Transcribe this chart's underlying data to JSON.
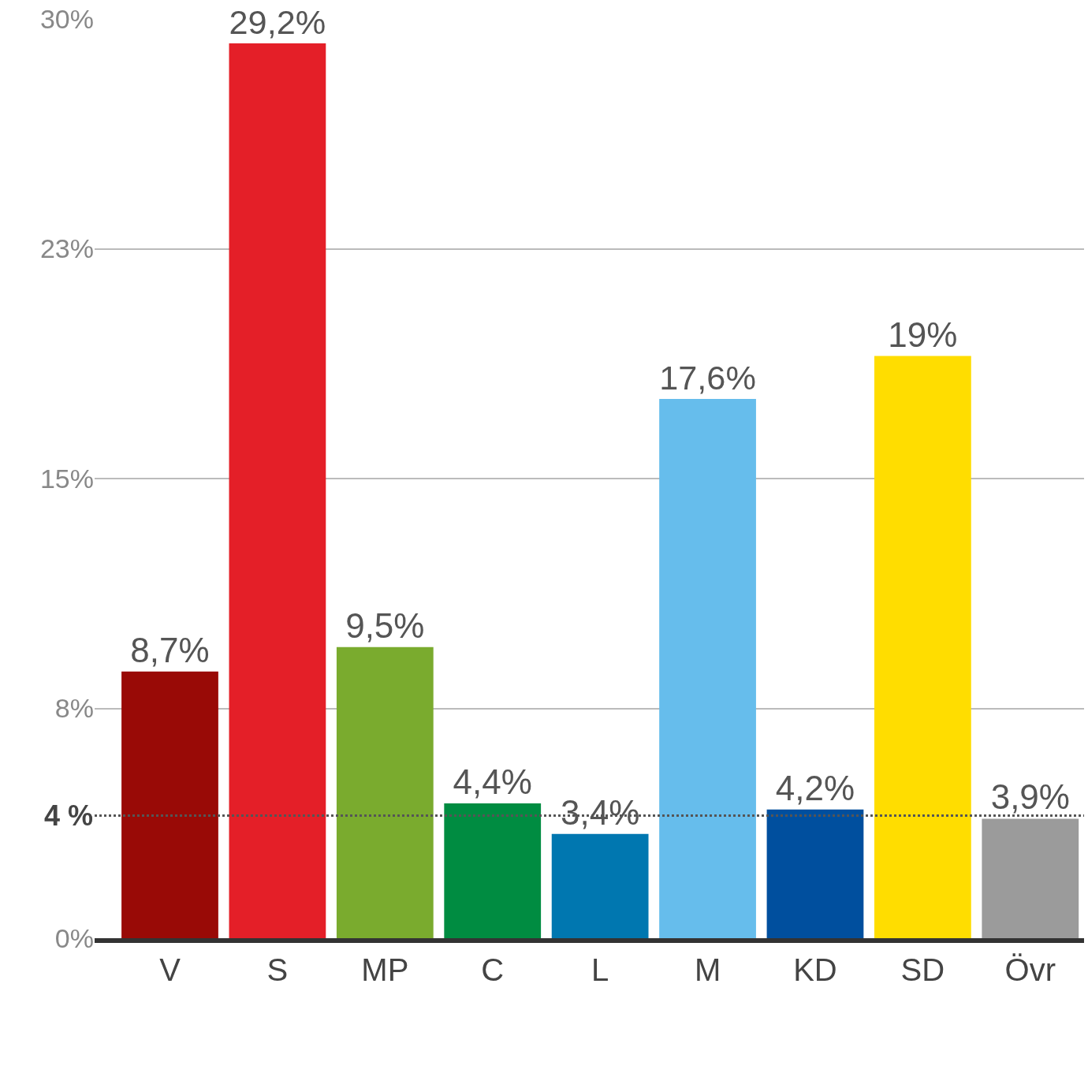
{
  "chart_data": {
    "type": "bar",
    "categories": [
      "V",
      "S",
      "MP",
      "C",
      "L",
      "M",
      "KD",
      "SD",
      "Övr"
    ],
    "values": [
      8.7,
      29.2,
      9.5,
      4.4,
      3.4,
      17.6,
      4.2,
      19,
      3.9
    ],
    "value_labels": [
      "8,7%",
      "29,2%",
      "9,5%",
      "4,4%",
      "3,4%",
      "17,6%",
      "4,2%",
      "19%",
      "3,9%"
    ],
    "colors": [
      "#990a06",
      "#e41f28",
      "#7aab2e",
      "#008c41",
      "#0077b0",
      "#66bdec",
      "#004f9e",
      "#ffdd00",
      "#9b9b9b"
    ],
    "ylim": [
      0,
      30
    ],
    "yticks": [
      {
        "value": 0,
        "label": "0%"
      },
      {
        "value": 7.5,
        "label": "8%"
      },
      {
        "value": 15,
        "label": "15%"
      },
      {
        "value": 22.5,
        "label": "23%"
      },
      {
        "value": 30,
        "label": "30%"
      }
    ],
    "grid": "y",
    "legend": false,
    "ref_lines": [
      {
        "axis": "y",
        "value": 4,
        "label": "4 %",
        "color": "#555555",
        "line_style": "dotted"
      }
    ]
  }
}
